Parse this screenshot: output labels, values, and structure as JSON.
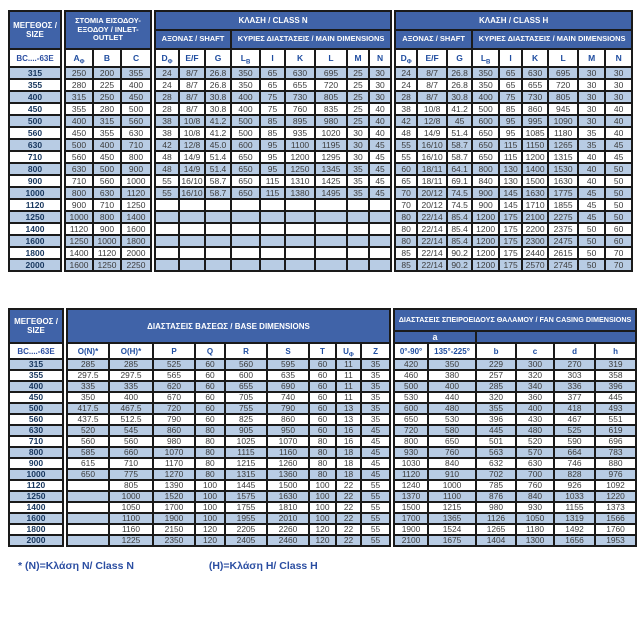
{
  "colors": {
    "header_blue": "#4063a8",
    "stripe_blue": "#b8cce4",
    "border_dark": "#1a1a1a",
    "letter_blue": "#1f4da0",
    "size_text_navy": "#17365d",
    "footnote_blue": "#2b4ea2"
  },
  "table1": {
    "headers": {
      "size": "ΜΕΓΕΘΟΣ / SIZE",
      "inlet": "ΣΤΟΜΙΑ ΕΙΣΟΔΟΥ-ΕΞΟΔΟΥ / INLET-OUTLET",
      "class_n": "ΚΛΑΣΗ / CLASS N",
      "class_h": "ΚΛΑΣΗ / CLASS H",
      "shaft": "ΑΞΟΝΑΣ / SHAFT",
      "main_dims": "ΚΥΡΙΕΣ ΔΙΑΣΤΑΣΕΙΣ / MAIN DIMENSIONS",
      "model": "BC....-63E",
      "inlet_cols": [
        "A_Φ",
        "B",
        "C"
      ],
      "class_cols": [
        "D_Φ",
        "E/F",
        "G",
        "L_B",
        "I",
        "K",
        "L",
        "M",
        "N"
      ]
    },
    "rows": [
      {
        "size": "315",
        "inlet": [
          "250",
          "200",
          "355"
        ],
        "n": [
          "24",
          "8/7",
          "26.8",
          "350",
          "65",
          "630",
          "695",
          "25",
          "30"
        ],
        "h": [
          "24",
          "8/7",
          "26.8",
          "350",
          "65",
          "630",
          "695",
          "30",
          "30"
        ]
      },
      {
        "size": "355",
        "inlet": [
          "280",
          "225",
          "400"
        ],
        "n": [
          "24",
          "8/7",
          "26.8",
          "350",
          "65",
          "655",
          "720",
          "25",
          "30"
        ],
        "h": [
          "24",
          "8/7",
          "26.8",
          "350",
          "65",
          "655",
          "720",
          "30",
          "30"
        ]
      },
      {
        "size": "400",
        "inlet": [
          "315",
          "250",
          "450"
        ],
        "n": [
          "28",
          "8/7",
          "30.8",
          "400",
          "75",
          "730",
          "805",
          "25",
          "30"
        ],
        "h": [
          "28",
          "8/7",
          "30.8",
          "400",
          "75",
          "730",
          "805",
          "30",
          "30"
        ]
      },
      {
        "size": "450",
        "inlet": [
          "355",
          "280",
          "500"
        ],
        "n": [
          "28",
          "8/7",
          "30.8",
          "400",
          "75",
          "760",
          "835",
          "25",
          "40"
        ],
        "h": [
          "38",
          "10/8",
          "41.2",
          "500",
          "85",
          "860",
          "945",
          "30",
          "40"
        ]
      },
      {
        "size": "500",
        "inlet": [
          "400",
          "315",
          "560"
        ],
        "n": [
          "38",
          "10/8",
          "41.2",
          "500",
          "85",
          "895",
          "980",
          "25",
          "40"
        ],
        "h": [
          "42",
          "12/8",
          "45",
          "600",
          "95",
          "995",
          "1090",
          "30",
          "40"
        ]
      },
      {
        "size": "560",
        "inlet": [
          "450",
          "355",
          "630"
        ],
        "n": [
          "38",
          "10/8",
          "41.2",
          "500",
          "85",
          "935",
          "1020",
          "30",
          "40"
        ],
        "h": [
          "48",
          "14/9",
          "51.4",
          "650",
          "95",
          "1085",
          "1180",
          "35",
          "40"
        ]
      },
      {
        "size": "630",
        "inlet": [
          "500",
          "400",
          "710"
        ],
        "n": [
          "42",
          "12/8",
          "45.0",
          "600",
          "95",
          "1100",
          "1195",
          "30",
          "45"
        ],
        "h": [
          "55",
          "16/10",
          "58.7",
          "650",
          "115",
          "1150",
          "1265",
          "35",
          "45"
        ]
      },
      {
        "size": "710",
        "inlet": [
          "560",
          "450",
          "800"
        ],
        "n": [
          "48",
          "14/9",
          "51.4",
          "650",
          "95",
          "1200",
          "1295",
          "30",
          "45"
        ],
        "h": [
          "55",
          "16/10",
          "58.7",
          "650",
          "115",
          "1200",
          "1315",
          "40",
          "45"
        ]
      },
      {
        "size": "800",
        "inlet": [
          "630",
          "500",
          "900"
        ],
        "n": [
          "48",
          "14/9",
          "51.4",
          "650",
          "95",
          "1250",
          "1345",
          "35",
          "45"
        ],
        "h": [
          "60",
          "18/11",
          "64.1",
          "800",
          "130",
          "1400",
          "1530",
          "40",
          "50"
        ]
      },
      {
        "size": "900",
        "inlet": [
          "710",
          "560",
          "1000"
        ],
        "n": [
          "55",
          "16/10",
          "58.7",
          "650",
          "115",
          "1310",
          "1425",
          "35",
          "45"
        ],
        "h": [
          "65",
          "18/11",
          "69.1",
          "840",
          "130",
          "1500",
          "1630",
          "40",
          "50"
        ]
      },
      {
        "size": "1000",
        "inlet": [
          "800",
          "630",
          "1120"
        ],
        "n": [
          "55",
          "16/10",
          "58.7",
          "650",
          "115",
          "1380",
          "1495",
          "35",
          "45"
        ],
        "h": [
          "70",
          "20/12",
          "74.5",
          "900",
          "145",
          "1630",
          "1775",
          "45",
          "50"
        ]
      },
      {
        "size": "1120",
        "inlet": [
          "900",
          "710",
          "1250"
        ],
        "n": [
          "",
          "",
          "",
          "",
          "",
          "",
          "",
          "",
          ""
        ],
        "h": [
          "70",
          "20/12",
          "74.5",
          "900",
          "145",
          "1710",
          "1855",
          "45",
          "50"
        ]
      },
      {
        "size": "1250",
        "inlet": [
          "1000",
          "800",
          "1400"
        ],
        "n": [
          "",
          "",
          "",
          "",
          "",
          "",
          "",
          "",
          ""
        ],
        "h": [
          "80",
          "22/14",
          "85.4",
          "1200",
          "175",
          "2100",
          "2275",
          "45",
          "50"
        ]
      },
      {
        "size": "1400",
        "inlet": [
          "1120",
          "900",
          "1600"
        ],
        "n": [
          "",
          "",
          "",
          "",
          "",
          "",
          "",
          "",
          ""
        ],
        "h": [
          "80",
          "22/14",
          "85.4",
          "1200",
          "175",
          "2200",
          "2375",
          "50",
          "60"
        ]
      },
      {
        "size": "1600",
        "inlet": [
          "1250",
          "1000",
          "1800"
        ],
        "n": [
          "",
          "",
          "",
          "",
          "",
          "",
          "",
          "",
          ""
        ],
        "h": [
          "80",
          "22/14",
          "85.4",
          "1200",
          "175",
          "2300",
          "2475",
          "50",
          "60"
        ]
      },
      {
        "size": "1800",
        "inlet": [
          "1400",
          "1120",
          "2000"
        ],
        "n": [
          "",
          "",
          "",
          "",
          "",
          "",
          "",
          "",
          ""
        ],
        "h": [
          "85",
          "22/14",
          "90.2",
          "1200",
          "175",
          "2440",
          "2615",
          "50",
          "70"
        ]
      },
      {
        "size": "2000",
        "inlet": [
          "1600",
          "1250",
          "2250"
        ],
        "n": [
          "",
          "",
          "",
          "",
          "",
          "",
          "",
          "",
          ""
        ],
        "h": [
          "85",
          "22/14",
          "90.2",
          "1200",
          "175",
          "2570",
          "2745",
          "50",
          "70"
        ]
      }
    ]
  },
  "table2": {
    "headers": {
      "size": "ΜΕΓΕΘΟΣ / SIZE",
      "base": "ΔΙΑΣΤΑΣΕΙΣ ΒΑΣΕΩΣ / BASE DIMENSIONS",
      "casing": "ΔΙΑΣΤΑΣΕΙΣ ΣΠΕΙΡΟΕΙΔΟΥΣ ΘΑΛΑΜΟΥ / FAN CASING DIMENSIONS",
      "a": "a",
      "model": "BC....-63E",
      "base_cols": [
        "O(N)*",
        "O(H)*",
        "P",
        "Q",
        "R",
        "S",
        "T",
        "U_Φ",
        "Z"
      ],
      "casing_cols": [
        "0°-90°",
        "135°-225°",
        "b",
        "c",
        "d",
        "h"
      ]
    },
    "rows": [
      {
        "size": "315",
        "base": [
          "285",
          "285",
          "525",
          "60",
          "560",
          "595",
          "60",
          "11",
          "35"
        ],
        "casing": [
          "420",
          "350",
          "229",
          "300",
          "270",
          "319"
        ]
      },
      {
        "size": "355",
        "base": [
          "297.5",
          "297.5",
          "565",
          "60",
          "600",
          "635",
          "60",
          "11",
          "35"
        ],
        "casing": [
          "460",
          "380",
          "257",
          "320",
          "303",
          "358"
        ]
      },
      {
        "size": "400",
        "base": [
          "335",
          "335",
          "620",
          "60",
          "655",
          "690",
          "60",
          "11",
          "35"
        ],
        "casing": [
          "500",
          "400",
          "285",
          "340",
          "336",
          "396"
        ]
      },
      {
        "size": "450",
        "base": [
          "350",
          "400",
          "670",
          "60",
          "705",
          "740",
          "60",
          "11",
          "35"
        ],
        "casing": [
          "530",
          "440",
          "320",
          "360",
          "377",
          "445"
        ]
      },
      {
        "size": "500",
        "base": [
          "417.5",
          "467.5",
          "720",
          "60",
          "755",
          "790",
          "60",
          "13",
          "35"
        ],
        "casing": [
          "600",
          "480",
          "355",
          "400",
          "418",
          "493"
        ]
      },
      {
        "size": "560",
        "base": [
          "437.5",
          "512.5",
          "790",
          "60",
          "825",
          "860",
          "60",
          "13",
          "35"
        ],
        "casing": [
          "650",
          "530",
          "396",
          "430",
          "467",
          "551"
        ]
      },
      {
        "size": "630",
        "base": [
          "520",
          "545",
          "860",
          "80",
          "905",
          "950",
          "60",
          "16",
          "45"
        ],
        "casing": [
          "720",
          "580",
          "445",
          "480",
          "525",
          "619"
        ]
      },
      {
        "size": "710",
        "base": [
          "560",
          "560",
          "980",
          "80",
          "1025",
          "1070",
          "80",
          "16",
          "45"
        ],
        "casing": [
          "800",
          "650",
          "501",
          "520",
          "590",
          "696"
        ]
      },
      {
        "size": "800",
        "base": [
          "585",
          "660",
          "1070",
          "80",
          "1115",
          "1160",
          "80",
          "18",
          "45"
        ],
        "casing": [
          "930",
          "760",
          "563",
          "570",
          "664",
          "783"
        ]
      },
      {
        "size": "900",
        "base": [
          "615",
          "710",
          "1170",
          "80",
          "1215",
          "1260",
          "80",
          "18",
          "45"
        ],
        "casing": [
          "1030",
          "840",
          "632",
          "630",
          "746",
          "880"
        ]
      },
      {
        "size": "1000",
        "base": [
          "650",
          "775",
          "1270",
          "80",
          "1315",
          "1360",
          "80",
          "18",
          "45"
        ],
        "casing": [
          "1120",
          "910",
          "702",
          "700",
          "828",
          "976"
        ]
      },
      {
        "size": "1120",
        "base": [
          "",
          "805",
          "1390",
          "100",
          "1445",
          "1500",
          "100",
          "22",
          "55"
        ],
        "casing": [
          "1240",
          "1000",
          "785",
          "760",
          "926",
          "1092"
        ]
      },
      {
        "size": "1250",
        "base": [
          "",
          "1000",
          "1520",
          "100",
          "1575",
          "1630",
          "100",
          "22",
          "55"
        ],
        "casing": [
          "1370",
          "1100",
          "876",
          "840",
          "1033",
          "1220"
        ]
      },
      {
        "size": "1400",
        "base": [
          "",
          "1050",
          "1700",
          "100",
          "1755",
          "1810",
          "100",
          "22",
          "55"
        ],
        "casing": [
          "1500",
          "1215",
          "980",
          "930",
          "1155",
          "1373"
        ]
      },
      {
        "size": "1600",
        "base": [
          "",
          "1100",
          "1900",
          "100",
          "1955",
          "2010",
          "100",
          "22",
          "55"
        ],
        "casing": [
          "1700",
          "1365",
          "1126",
          "1050",
          "1319",
          "1566"
        ]
      },
      {
        "size": "1800",
        "base": [
          "",
          "1160",
          "2150",
          "120",
          "2205",
          "2260",
          "120",
          "22",
          "55"
        ],
        "casing": [
          "1900",
          "1524",
          "1265",
          "1180",
          "1492",
          "1760"
        ]
      },
      {
        "size": "2000",
        "base": [
          "",
          "1225",
          "2350",
          "120",
          "2405",
          "2460",
          "120",
          "22",
          "55"
        ],
        "casing": [
          "2100",
          "1675",
          "1404",
          "1300",
          "1656",
          "1953"
        ]
      }
    ]
  },
  "footnote": {
    "n": "* (N)=Κλάση N/ Class N",
    "h": "(H)=Κλάση H/ Class H"
  }
}
